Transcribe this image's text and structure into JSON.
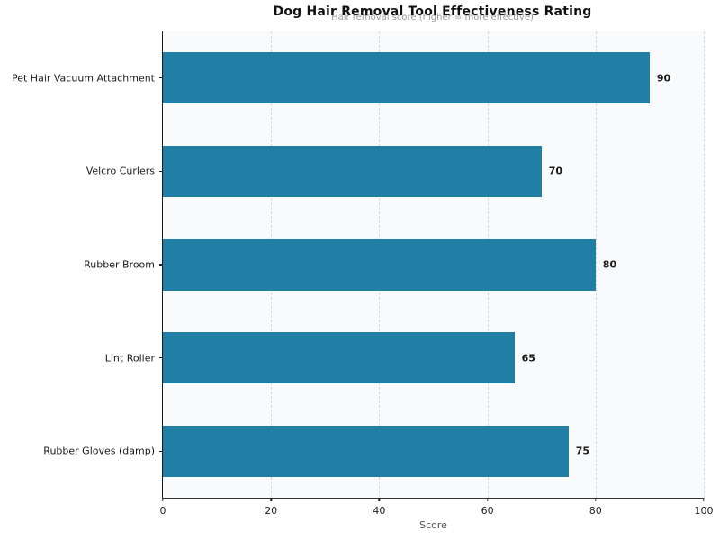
{
  "chart_data": {
    "type": "bar",
    "orientation": "horizontal",
    "title": "Dog Hair Removal Tool Effectiveness Rating",
    "subtitle": "Hair removal score (higher = more effective)",
    "categories": [
      "Pet Hair Vacuum Attachment",
      "Velcro Curlers",
      "Rubber Broom",
      "Lint Roller",
      "Rubber Gloves (damp)"
    ],
    "values": [
      90,
      70,
      80,
      65,
      75
    ],
    "value_labels": [
      "90",
      "70",
      "80",
      "65",
      "75"
    ],
    "xlabel": "Score",
    "xlim": [
      0,
      100
    ],
    "xticks": [
      0,
      20,
      40,
      60,
      80,
      100
    ],
    "bar_color": "#217fa5",
    "plot_bg_color": "#f8fafb",
    "grid": "vertical-dashed",
    "legend": "none"
  }
}
